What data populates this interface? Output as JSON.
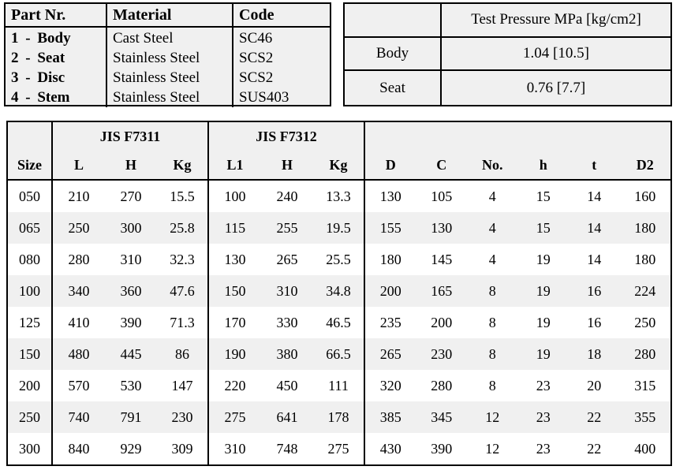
{
  "colors": {
    "page_background": "#ffffff",
    "table_fill": "#f0f0f0",
    "border": "#000000",
    "text": "#000000"
  },
  "parts_table": {
    "headers": [
      "Part Nr.",
      "Material",
      "Code"
    ],
    "rows": [
      {
        "part": "1 - Body",
        "material": "Cast Steel",
        "code": "SC46"
      },
      {
        "part": "2 - Seat",
        "material": "Stainless Steel",
        "code": "SCS2"
      },
      {
        "part": "3 - Disc",
        "material": "Stainless Steel",
        "code": "SCS2"
      },
      {
        "part": "4 - Stem",
        "material": "Stainless Steel",
        "code": "SUS403"
      }
    ]
  },
  "pressure_table": {
    "header": "Test Pressure MPa [kg/cm2]",
    "rows": [
      {
        "label": "Body",
        "value": "1.04 [10.5]"
      },
      {
        "label": "Seat",
        "value": "0.76 [7.7]"
      }
    ]
  },
  "dimensions_table": {
    "group_headers": [
      "JIS F7311",
      "JIS F7312"
    ],
    "columns": [
      "Size",
      "L",
      "H",
      "Kg",
      "L1",
      "H",
      "Kg",
      "D",
      "C",
      "No.",
      "h",
      "t",
      "D2"
    ],
    "rows": [
      [
        "050",
        "210",
        "270",
        "15.5",
        "100",
        "240",
        "13.3",
        "130",
        "105",
        "4",
        "15",
        "14",
        "160"
      ],
      [
        "065",
        "250",
        "300",
        "25.8",
        "115",
        "255",
        "19.5",
        "155",
        "130",
        "4",
        "15",
        "14",
        "180"
      ],
      [
        "080",
        "280",
        "310",
        "32.3",
        "130",
        "265",
        "25.5",
        "180",
        "145",
        "4",
        "19",
        "14",
        "180"
      ],
      [
        "100",
        "340",
        "360",
        "47.6",
        "150",
        "310",
        "34.8",
        "200",
        "165",
        "8",
        "19",
        "16",
        "224"
      ],
      [
        "125",
        "410",
        "390",
        "71.3",
        "170",
        "330",
        "46.5",
        "235",
        "200",
        "8",
        "19",
        "16",
        "250"
      ],
      [
        "150",
        "480",
        "445",
        "86",
        "190",
        "380",
        "66.5",
        "265",
        "230",
        "8",
        "19",
        "18",
        "280"
      ],
      [
        "200",
        "570",
        "530",
        "147",
        "220",
        "450",
        "111",
        "320",
        "280",
        "8",
        "23",
        "20",
        "315"
      ],
      [
        "250",
        "740",
        "791",
        "230",
        "275",
        "641",
        "178",
        "385",
        "345",
        "12",
        "23",
        "22",
        "355"
      ],
      [
        "300",
        "840",
        "929",
        "309",
        "310",
        "748",
        "275",
        "430",
        "390",
        "12",
        "23",
        "22",
        "400"
      ]
    ]
  }
}
